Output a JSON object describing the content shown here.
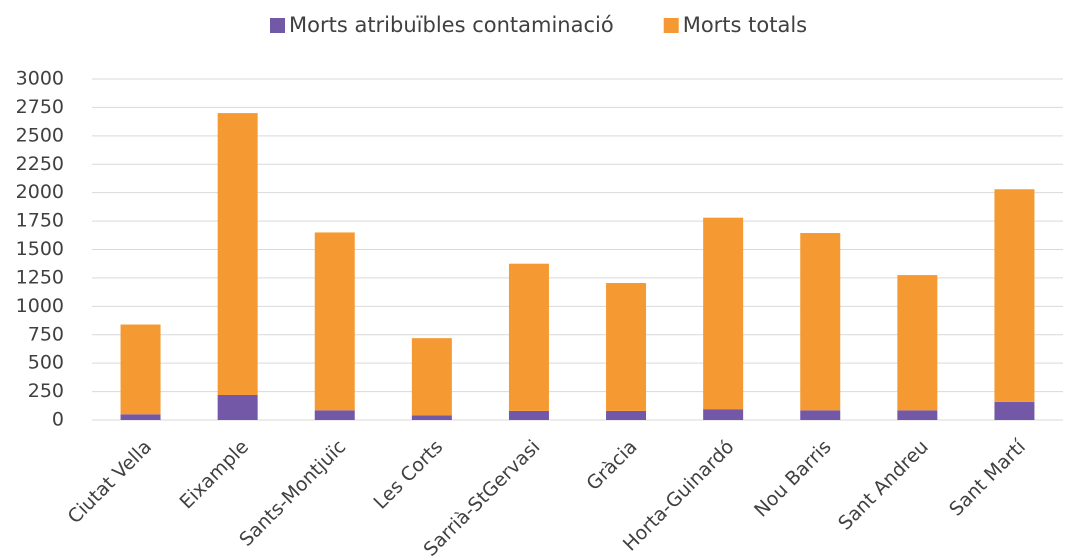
{
  "chart_data": {
    "type": "stacked_bar",
    "categories": [
      "Ciutat Vella",
      "Eixample",
      "Sants-Montjuïc",
      "Les Corts",
      "Sarrià-StGervasi",
      "Gràcia",
      "Horta-Guinardó",
      "Nou Barris",
      "Sant Andreu",
      "Sant Martí"
    ],
    "series": [
      {
        "name": "Morts atribuïbles contaminació",
        "color": "#7458a8",
        "values": [
          50,
          220,
          85,
          40,
          80,
          80,
          95,
          85,
          85,
          160
        ]
      },
      {
        "name": "Morts totals",
        "color": "#f59a33",
        "values": [
          790,
          2480,
          1565,
          680,
          1295,
          1125,
          1685,
          1560,
          1190,
          1870
        ]
      }
    ],
    "ylim": [
      0,
      3000
    ],
    "yticks": [
      0,
      250,
      500,
      750,
      1000,
      1250,
      1500,
      1750,
      2000,
      2250,
      2500,
      2750,
      3000
    ],
    "grid": true,
    "legend": "top"
  }
}
